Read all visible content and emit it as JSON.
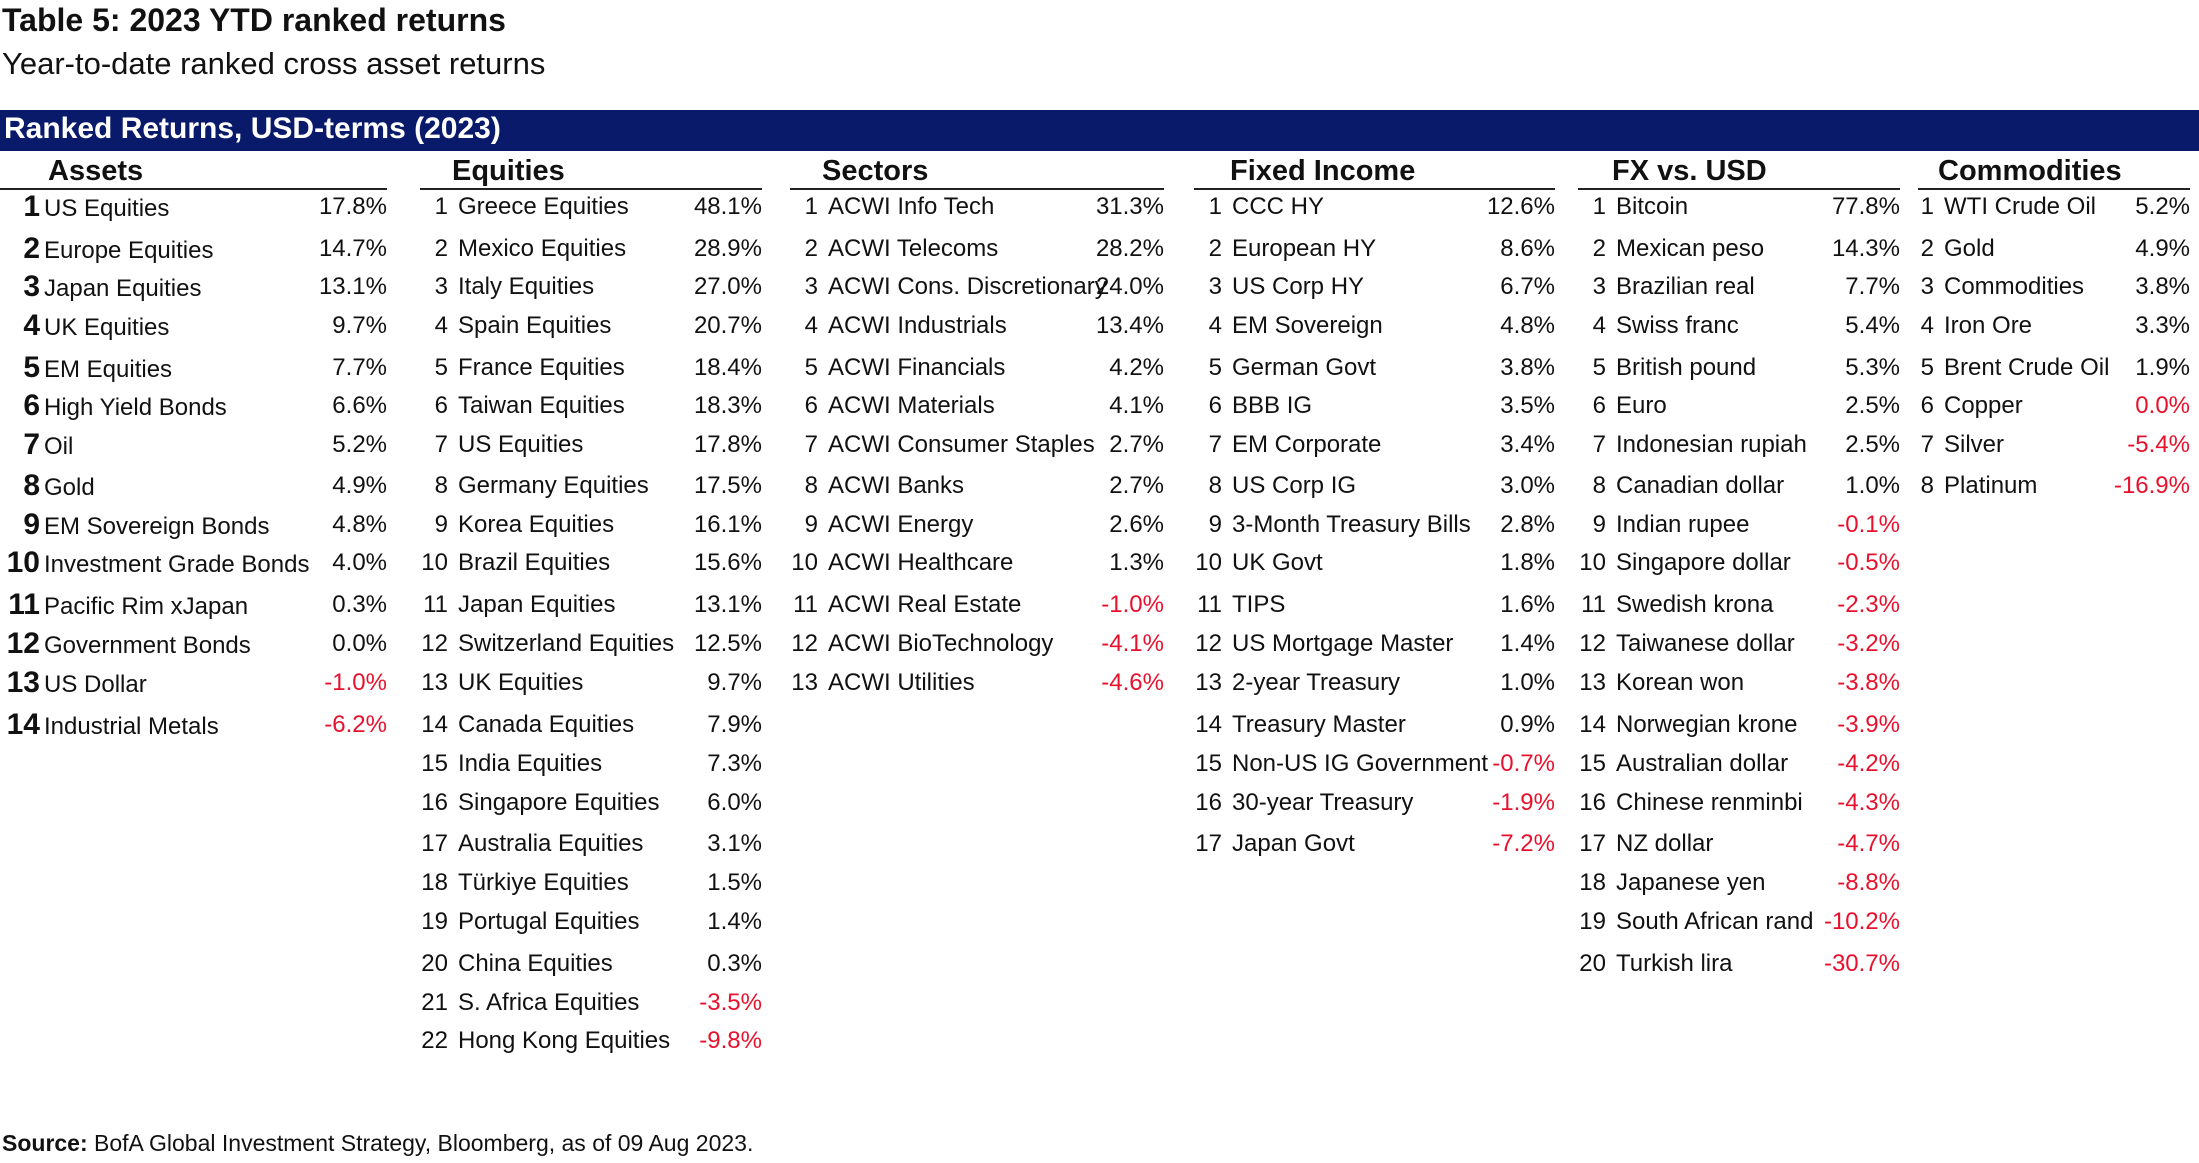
{
  "title": "Table 5: 2023 YTD ranked returns",
  "subtitle": "Year-to-date ranked cross asset returns",
  "banner": "Ranked Returns, USD-terms (2023)",
  "columns": [
    {
      "header": "Assets",
      "rows": [
        {
          "rank": "1",
          "name": "US Equities",
          "value": "17.8%",
          "negative": false
        },
        {
          "rank": "2",
          "name": "Europe Equities",
          "value": "14.7%",
          "negative": false
        },
        {
          "rank": "3",
          "name": "Japan Equities",
          "value": "13.1%",
          "negative": false
        },
        {
          "rank": "4",
          "name": "UK Equities",
          "value": "9.7%",
          "negative": false
        },
        {
          "rank": "5",
          "name": "EM Equities",
          "value": "7.7%",
          "negative": false
        },
        {
          "rank": "6",
          "name": "High Yield Bonds",
          "value": "6.6%",
          "negative": false
        },
        {
          "rank": "7",
          "name": "Oil",
          "value": "5.2%",
          "negative": false
        },
        {
          "rank": "8",
          "name": "Gold",
          "value": "4.9%",
          "negative": false
        },
        {
          "rank": "9",
          "name": "EM Sovereign Bonds",
          "value": "4.8%",
          "negative": false
        },
        {
          "rank": "10",
          "name": "Investment Grade Bonds",
          "value": "4.0%",
          "negative": false
        },
        {
          "rank": "11",
          "name": "Pacific Rim xJapan",
          "value": "0.3%",
          "negative": false
        },
        {
          "rank": "12",
          "name": "Government Bonds",
          "value": "0.0%",
          "negative": false
        },
        {
          "rank": "13",
          "name": "US Dollar",
          "value": "-1.0%",
          "negative": true
        },
        {
          "rank": "14",
          "name": "Industrial Metals",
          "value": "-6.2%",
          "negative": true
        }
      ]
    },
    {
      "header": "Equities",
      "rows": [
        {
          "rank": "1",
          "name": "Greece Equities",
          "value": "48.1%",
          "negative": false
        },
        {
          "rank": "2",
          "name": "Mexico Equities",
          "value": "28.9%",
          "negative": false
        },
        {
          "rank": "3",
          "name": "Italy Equities",
          "value": "27.0%",
          "negative": false
        },
        {
          "rank": "4",
          "name": "Spain Equities",
          "value": "20.7%",
          "negative": false
        },
        {
          "rank": "5",
          "name": "France Equities",
          "value": "18.4%",
          "negative": false
        },
        {
          "rank": "6",
          "name": "Taiwan Equities",
          "value": "18.3%",
          "negative": false
        },
        {
          "rank": "7",
          "name": "US Equities",
          "value": "17.8%",
          "negative": false
        },
        {
          "rank": "8",
          "name": "Germany Equities",
          "value": "17.5%",
          "negative": false
        },
        {
          "rank": "9",
          "name": "Korea Equities",
          "value": "16.1%",
          "negative": false
        },
        {
          "rank": "10",
          "name": "Brazil Equities",
          "value": "15.6%",
          "negative": false
        },
        {
          "rank": "11",
          "name": "Japan Equities",
          "value": "13.1%",
          "negative": false
        },
        {
          "rank": "12",
          "name": "Switzerland Equities",
          "value": "12.5%",
          "negative": false
        },
        {
          "rank": "13",
          "name": "UK Equities",
          "value": "9.7%",
          "negative": false
        },
        {
          "rank": "14",
          "name": "Canada Equities",
          "value": "7.9%",
          "negative": false
        },
        {
          "rank": "15",
          "name": "India Equities",
          "value": "7.3%",
          "negative": false
        },
        {
          "rank": "16",
          "name": "Singapore Equities",
          "value": "6.0%",
          "negative": false
        },
        {
          "rank": "17",
          "name": "Australia Equities",
          "value": "3.1%",
          "negative": false
        },
        {
          "rank": "18",
          "name": "Türkiye Equities",
          "value": "1.5%",
          "negative": false
        },
        {
          "rank": "19",
          "name": "Portugal Equities",
          "value": "1.4%",
          "negative": false
        },
        {
          "rank": "20",
          "name": "China Equities",
          "value": "0.3%",
          "negative": false
        },
        {
          "rank": "21",
          "name": "S. Africa Equities",
          "value": "-3.5%",
          "negative": true
        },
        {
          "rank": "22",
          "name": "Hong Kong Equities",
          "value": "-9.8%",
          "negative": true
        }
      ]
    },
    {
      "header": "Sectors",
      "rows": [
        {
          "rank": "1",
          "name": "ACWI Info Tech",
          "value": "31.3%",
          "negative": false
        },
        {
          "rank": "2",
          "name": "ACWI Telecoms",
          "value": "28.2%",
          "negative": false
        },
        {
          "rank": "3",
          "name": "ACWI Cons. Discretionary",
          "value": "24.0%",
          "negative": false
        },
        {
          "rank": "4",
          "name": "ACWI Industrials",
          "value": "13.4%",
          "negative": false
        },
        {
          "rank": "5",
          "name": "ACWI Financials",
          "value": "4.2%",
          "negative": false
        },
        {
          "rank": "6",
          "name": "ACWI Materials",
          "value": "4.1%",
          "negative": false
        },
        {
          "rank": "7",
          "name": "ACWI Consumer Staples",
          "value": "2.7%",
          "negative": false
        },
        {
          "rank": "8",
          "name": "ACWI Banks",
          "value": "2.7%",
          "negative": false
        },
        {
          "rank": "9",
          "name": "ACWI Energy",
          "value": "2.6%",
          "negative": false
        },
        {
          "rank": "10",
          "name": "ACWI Healthcare",
          "value": "1.3%",
          "negative": false
        },
        {
          "rank": "11",
          "name": "ACWI Real Estate",
          "value": "-1.0%",
          "negative": true
        },
        {
          "rank": "12",
          "name": "ACWI BioTechnology",
          "value": "-4.1%",
          "negative": true
        },
        {
          "rank": "13",
          "name": "ACWI Utilities",
          "value": "-4.6%",
          "negative": true
        }
      ]
    },
    {
      "header": "Fixed Income",
      "rows": [
        {
          "rank": "1",
          "name": "CCC HY",
          "value": "12.6%",
          "negative": false
        },
        {
          "rank": "2",
          "name": "European HY",
          "value": "8.6%",
          "negative": false
        },
        {
          "rank": "3",
          "name": "US Corp HY",
          "value": "6.7%",
          "negative": false
        },
        {
          "rank": "4",
          "name": "EM Sovereign",
          "value": "4.8%",
          "negative": false
        },
        {
          "rank": "5",
          "name": "German Govt",
          "value": "3.8%",
          "negative": false
        },
        {
          "rank": "6",
          "name": "BBB IG",
          "value": "3.5%",
          "negative": false
        },
        {
          "rank": "7",
          "name": "EM Corporate",
          "value": "3.4%",
          "negative": false
        },
        {
          "rank": "8",
          "name": "US Corp IG",
          "value": "3.0%",
          "negative": false
        },
        {
          "rank": "9",
          "name": "3-Month Treasury Bills",
          "value": "2.8%",
          "negative": false
        },
        {
          "rank": "10",
          "name": "UK Govt",
          "value": "1.8%",
          "negative": false
        },
        {
          "rank": "11",
          "name": "TIPS",
          "value": "1.6%",
          "negative": false
        },
        {
          "rank": "12",
          "name": "US Mortgage Master",
          "value": "1.4%",
          "negative": false
        },
        {
          "rank": "13",
          "name": "2-year Treasury",
          "value": "1.0%",
          "negative": false
        },
        {
          "rank": "14",
          "name": "Treasury Master",
          "value": "0.9%",
          "negative": false
        },
        {
          "rank": "15",
          "name": "Non-US IG Government",
          "value": "-0.7%",
          "negative": true
        },
        {
          "rank": "16",
          "name": "30-year Treasury",
          "value": "-1.9%",
          "negative": true
        },
        {
          "rank": "17",
          "name": "Japan Govt",
          "value": "-7.2%",
          "negative": true
        }
      ]
    },
    {
      "header": "FX vs. USD",
      "rows": [
        {
          "rank": "1",
          "name": "Bitcoin",
          "value": "77.8%",
          "negative": false
        },
        {
          "rank": "2",
          "name": "Mexican peso",
          "value": "14.3%",
          "negative": false
        },
        {
          "rank": "3",
          "name": "Brazilian real",
          "value": "7.7%",
          "negative": false
        },
        {
          "rank": "4",
          "name": "Swiss franc",
          "value": "5.4%",
          "negative": false
        },
        {
          "rank": "5",
          "name": "British pound",
          "value": "5.3%",
          "negative": false
        },
        {
          "rank": "6",
          "name": "Euro",
          "value": "2.5%",
          "negative": false
        },
        {
          "rank": "7",
          "name": "Indonesian rupiah",
          "value": "2.5%",
          "negative": false
        },
        {
          "rank": "8",
          "name": "Canadian dollar",
          "value": "1.0%",
          "negative": false
        },
        {
          "rank": "9",
          "name": "Indian rupee",
          "value": "-0.1%",
          "negative": true
        },
        {
          "rank": "10",
          "name": "Singapore dollar",
          "value": "-0.5%",
          "negative": true
        },
        {
          "rank": "11",
          "name": "Swedish krona",
          "value": "-2.3%",
          "negative": true
        },
        {
          "rank": "12",
          "name": "Taiwanese dollar",
          "value": "-3.2%",
          "negative": true
        },
        {
          "rank": "13",
          "name": "Korean won",
          "value": "-3.8%",
          "negative": true
        },
        {
          "rank": "14",
          "name": "Norwegian krone",
          "value": "-3.9%",
          "negative": true
        },
        {
          "rank": "15",
          "name": "Australian dollar",
          "value": "-4.2%",
          "negative": true
        },
        {
          "rank": "16",
          "name": "Chinese renminbi",
          "value": "-4.3%",
          "negative": true
        },
        {
          "rank": "17",
          "name": "NZ dollar",
          "value": "-4.7%",
          "negative": true
        },
        {
          "rank": "18",
          "name": "Japanese yen",
          "value": "-8.8%",
          "negative": true
        },
        {
          "rank": "19",
          "name": "South African rand",
          "value": "-10.2%",
          "negative": true
        },
        {
          "rank": "20",
          "name": "Turkish lira",
          "value": "-30.7%",
          "negative": true
        }
      ]
    },
    {
      "header": "Commodities",
      "rows": [
        {
          "rank": "1",
          "name": "WTI Crude Oil",
          "value": "5.2%",
          "negative": false
        },
        {
          "rank": "2",
          "name": "Gold",
          "value": "4.9%",
          "negative": false
        },
        {
          "rank": "3",
          "name": "Commodities",
          "value": "3.8%",
          "negative": false
        },
        {
          "rank": "4",
          "name": "Iron Ore",
          "value": "3.3%",
          "negative": false
        },
        {
          "rank": "5",
          "name": "Brent Crude Oil",
          "value": "1.9%",
          "negative": false
        },
        {
          "rank": "6",
          "name": "Copper",
          "value": "0.0%",
          "negative": true
        },
        {
          "rank": "7",
          "name": "Silver",
          "value": "-5.4%",
          "negative": true
        },
        {
          "rank": "8",
          "name": "Platinum",
          "value": "-16.9%",
          "negative": true
        }
      ]
    }
  ],
  "source_label": "Source:",
  "source_text": "BofA Global Investment Strategy, Bloomberg, as of 09 Aug 2023.",
  "colors": {
    "banner": "#0a1a6b",
    "negative": "#e8112d"
  }
}
